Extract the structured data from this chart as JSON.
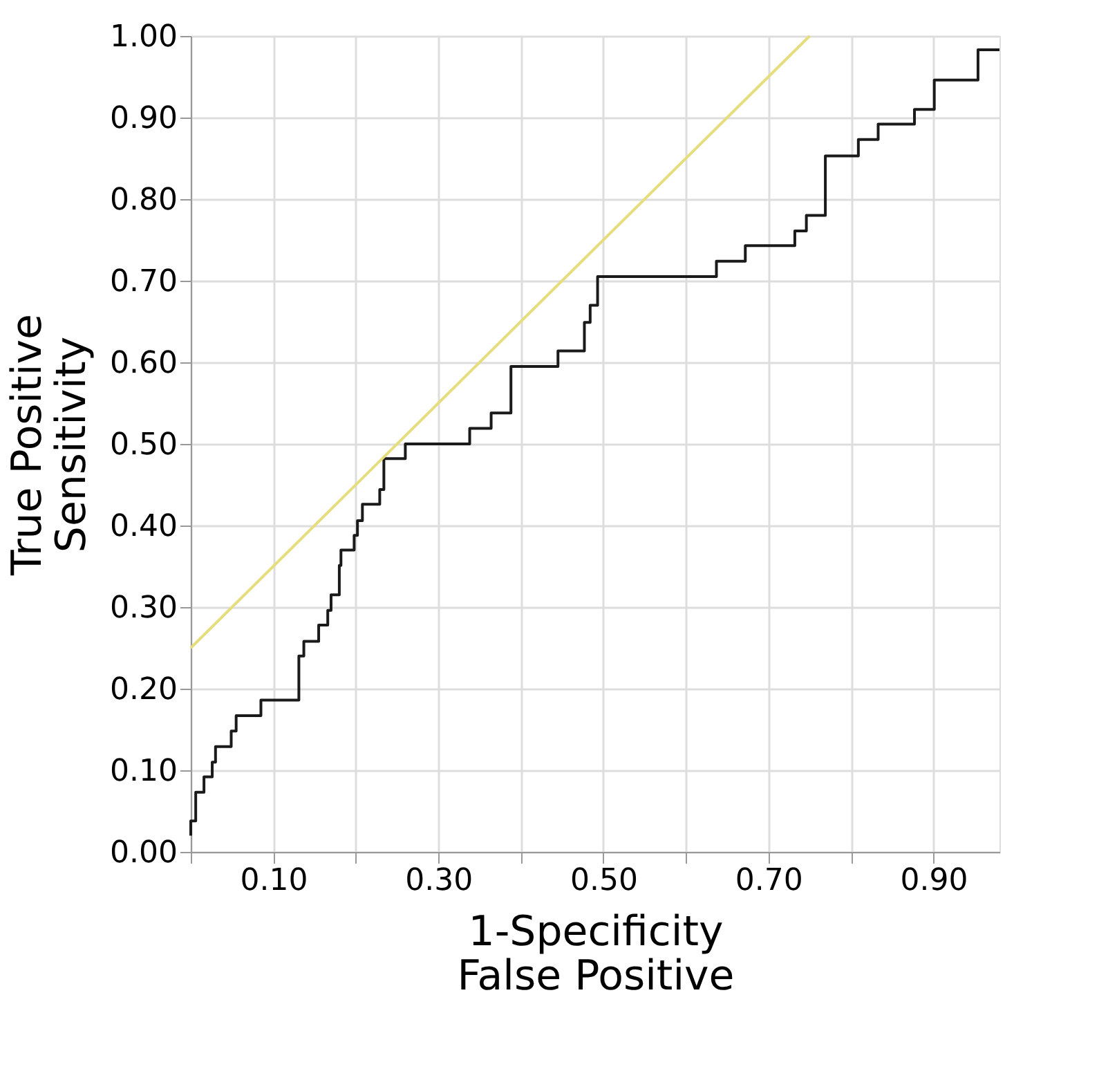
{
  "chart_data": {
    "type": "step",
    "xlabel": "1-Specificity\nFalse Positive",
    "ylabel": "True Positive\nSensitivity",
    "xlim": [
      0,
      0.98
    ],
    "ylim": [
      0,
      1
    ],
    "xticks": [
      {
        "value": 0,
        "label": null
      },
      {
        "value": 0.1,
        "label": "0.10"
      },
      {
        "value": 0.2,
        "label": null
      },
      {
        "value": 0.3,
        "label": "0.30"
      },
      {
        "value": 0.4,
        "label": null
      },
      {
        "value": 0.5,
        "label": "0.50"
      },
      {
        "value": 0.6,
        "label": null
      },
      {
        "value": 0.7,
        "label": "0.70"
      },
      {
        "value": 0.8,
        "label": null
      },
      {
        "value": 0.9,
        "label": "0.90"
      }
    ],
    "yticks": [
      {
        "value": 0,
        "label": "0.00"
      },
      {
        "value": 0.1,
        "label": "0.10"
      },
      {
        "value": 0.2,
        "label": "0.20"
      },
      {
        "value": 0.3,
        "label": "0.30"
      },
      {
        "value": 0.4,
        "label": "0.40"
      },
      {
        "value": 0.5,
        "label": "0.50"
      },
      {
        "value": 0.6,
        "label": "0.60"
      },
      {
        "value": 0.7,
        "label": "0.70"
      },
      {
        "value": 0.8,
        "label": "0.80"
      },
      {
        "value": 0.9,
        "label": "0.90"
      },
      {
        "value": 1,
        "label": "1.00"
      }
    ],
    "grid": true,
    "marker": "none",
    "line_style": "solid",
    "series": [
      {
        "color": "#1a1a1a",
        "x": [
          0,
          0,
          0.006,
          0.016,
          0.026,
          0.03,
          0.049,
          0.055,
          0.085,
          0.131,
          0.137,
          0.155,
          0.166,
          0.17,
          0.18,
          0.182,
          0.198,
          0.202,
          0.208,
          0.229,
          0.234,
          0.26,
          0.338,
          0.364,
          0.388,
          0.445,
          0.477,
          0.484,
          0.493,
          0.637,
          0.672,
          0.732,
          0.746,
          0.769,
          0.809,
          0.833,
          0.877,
          0.901,
          0.954,
          0.98
        ],
        "values": [
          0.02,
          0.038,
          0.073,
          0.092,
          0.11,
          0.129,
          0.148,
          0.167,
          0.186,
          0.24,
          0.258,
          0.278,
          0.296,
          0.315,
          0.351,
          0.37,
          0.388,
          0.406,
          0.426,
          0.444,
          0.482,
          0.5,
          0.519,
          0.538,
          0.595,
          0.614,
          0.649,
          0.67,
          0.705,
          0.724,
          0.743,
          0.761,
          0.78,
          0.853,
          0.873,
          0.892,
          0.91,
          0.946,
          0.983,
          0.983
        ]
      },
      {
        "type": "line",
        "color": "#e5dd7e",
        "x": [
          0,
          0.75
        ],
        "values": [
          0.25,
          1.0
        ]
      }
    ]
  }
}
